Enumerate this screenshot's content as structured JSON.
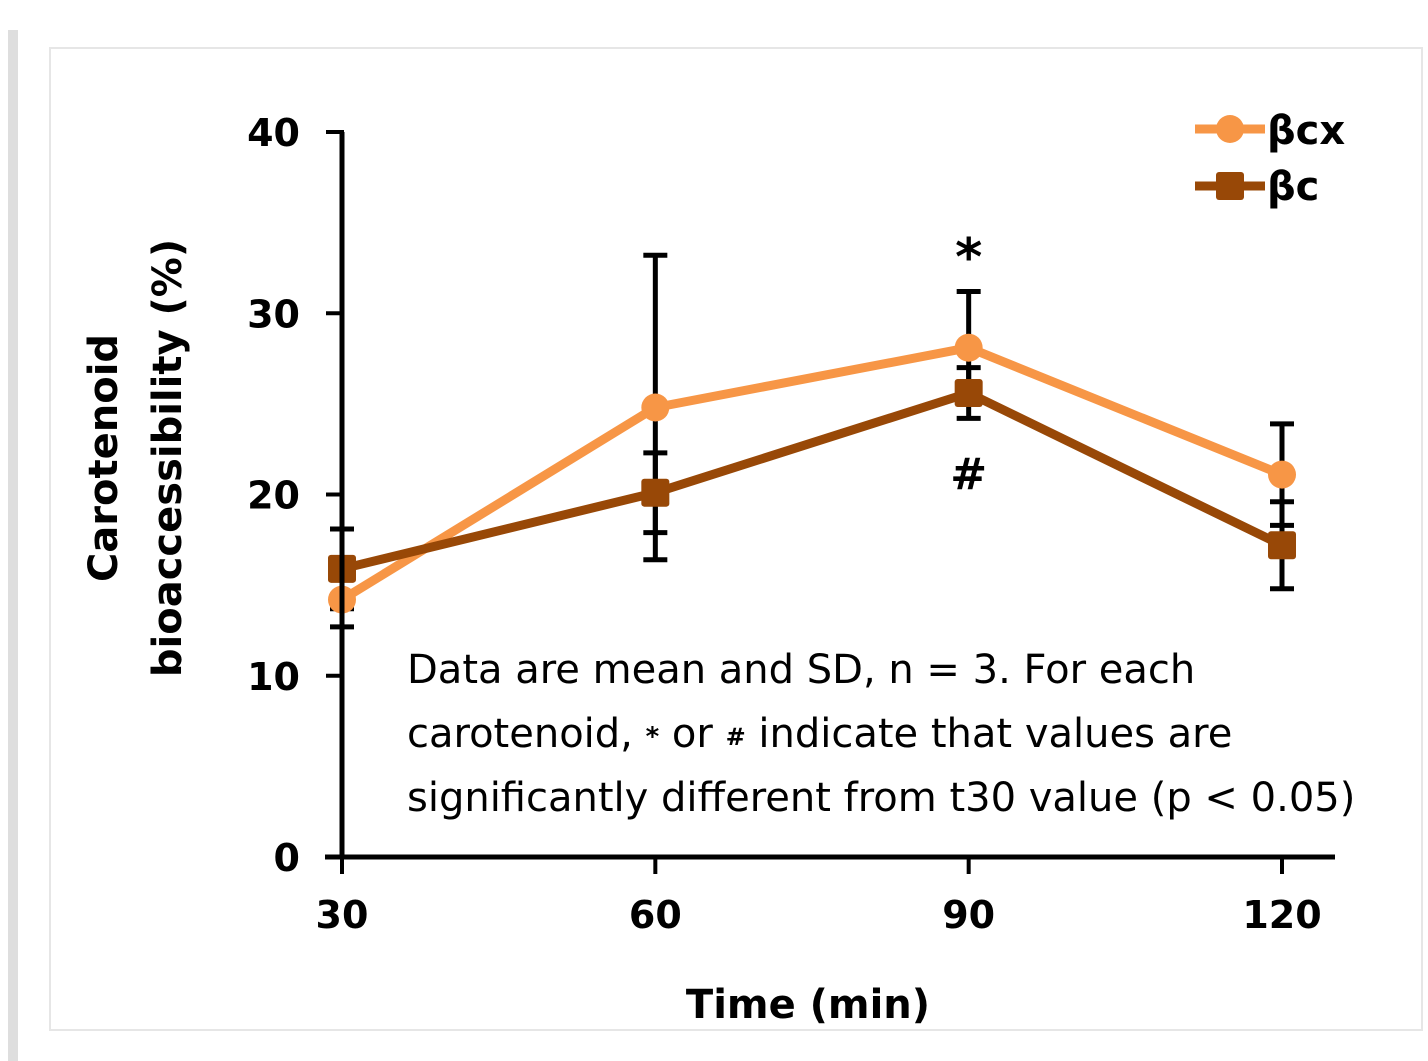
{
  "chart_data": {
    "type": "line",
    "x": [
      30,
      60,
      90,
      120
    ],
    "xlabel": "Time (min)",
    "ylabel_lines": [
      "Carotenoid",
      "bioaccessibility (%)"
    ],
    "ylim": [
      0,
      40
    ],
    "yticks": [
      0,
      10,
      20,
      30,
      40
    ],
    "xticks": [
      30,
      60,
      90,
      120
    ],
    "grid": false,
    "legend_position": "top-right",
    "series": [
      {
        "name": "βcx",
        "marker": "circle",
        "color": "#F79646",
        "values": [
          14.2,
          24.8,
          28.1,
          21.1
        ],
        "sd": [
          1.5,
          8.4,
          3.1,
          2.8
        ]
      },
      {
        "name": "βc",
        "marker": "square",
        "color": "#984807",
        "values": [
          15.9,
          20.1,
          25.6,
          17.2
        ],
        "sd": [
          2.2,
          2.2,
          1.4,
          2.4
        ]
      }
    ],
    "annotations": [
      {
        "text": "*",
        "x": 90,
        "y": 33.0
      },
      {
        "text": "#",
        "x": 90,
        "y": 21.2
      }
    ],
    "note": {
      "line1": "Data are mean and SD, n = 3. For each",
      "line2_a": "carotenoid, ",
      "line2_star": "*",
      "line2_b": " or ",
      "line2_hash": "#",
      "line2_c": " indicate that values are",
      "line3": "significantly different from t30 value (p < 0.05)"
    }
  },
  "colors": {
    "axis": "#000000",
    "frame_border": "#e6e6e6",
    "shadow": "#d9d9d9"
  }
}
